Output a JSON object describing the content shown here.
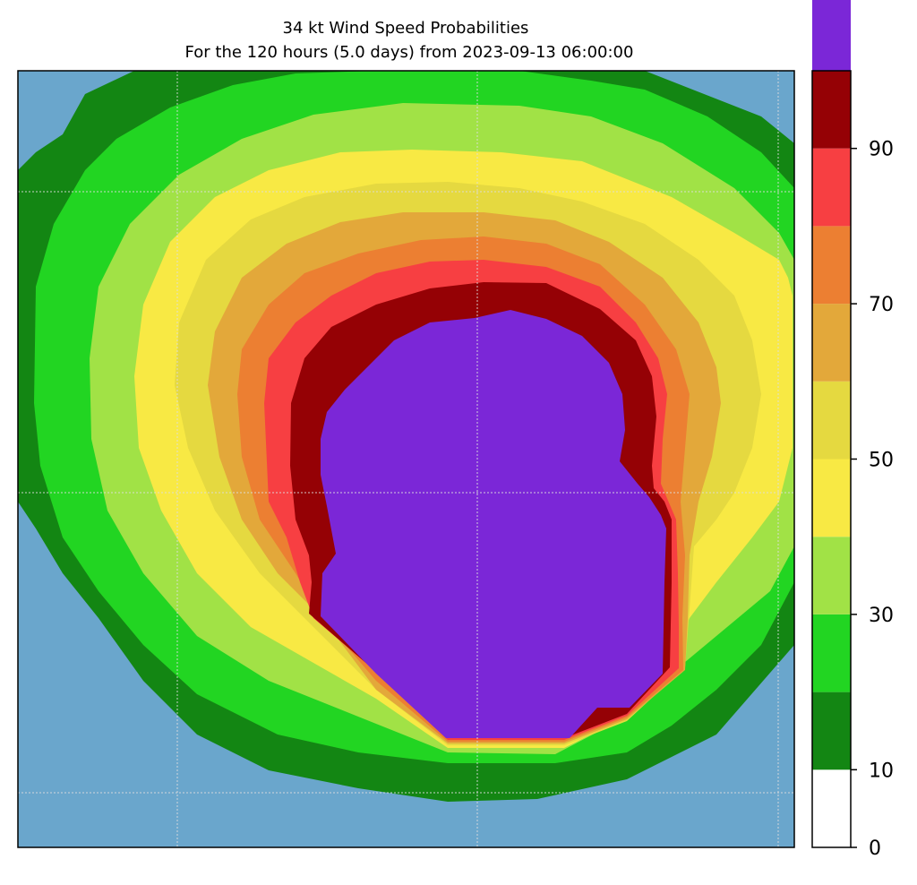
{
  "chart_data": {
    "type": "heatmap",
    "subtype": "filled-contour map",
    "title": "34 kt Wind Speed Probabilities",
    "subtitle": "For the 120 hours (5.0 days) from 2023-09-13 06:00:00",
    "xlabel": "",
    "ylabel": "",
    "grid": true,
    "background_label": "ocean",
    "background_color": "#6aa6cc",
    "colorbar": {
      "min": 0,
      "max": 100,
      "step": 10,
      "ticks": [
        0,
        10,
        30,
        50,
        70,
        90
      ],
      "tick_labels": [
        "0",
        "10",
        "30",
        "50",
        "70",
        "90"
      ],
      "band_colors": [
        "#ffffff",
        "#138613",
        "#22d522",
        "#a1e246",
        "#f8e944",
        "#e5d940",
        "#e3a83a",
        "#ec7f32",
        "#f73f42",
        "#950105",
        "#7b27d7"
      ]
    },
    "contour_levels": [
      {
        "level": 5,
        "color": "#138613"
      },
      {
        "level": 10,
        "color": "#22d522"
      },
      {
        "level": 20,
        "color": "#a1e246"
      },
      {
        "level": 30,
        "color": "#f8e944"
      },
      {
        "level": 40,
        "color": "#e5d940"
      },
      {
        "level": 50,
        "color": "#e3a83a"
      },
      {
        "level": 60,
        "color": "#ec7f32"
      },
      {
        "level": 70,
        "color": "#f73f42"
      },
      {
        "level": 80,
        "color": "#950105"
      },
      {
        "level": 90,
        "color": "#7b27d7"
      }
    ]
  }
}
